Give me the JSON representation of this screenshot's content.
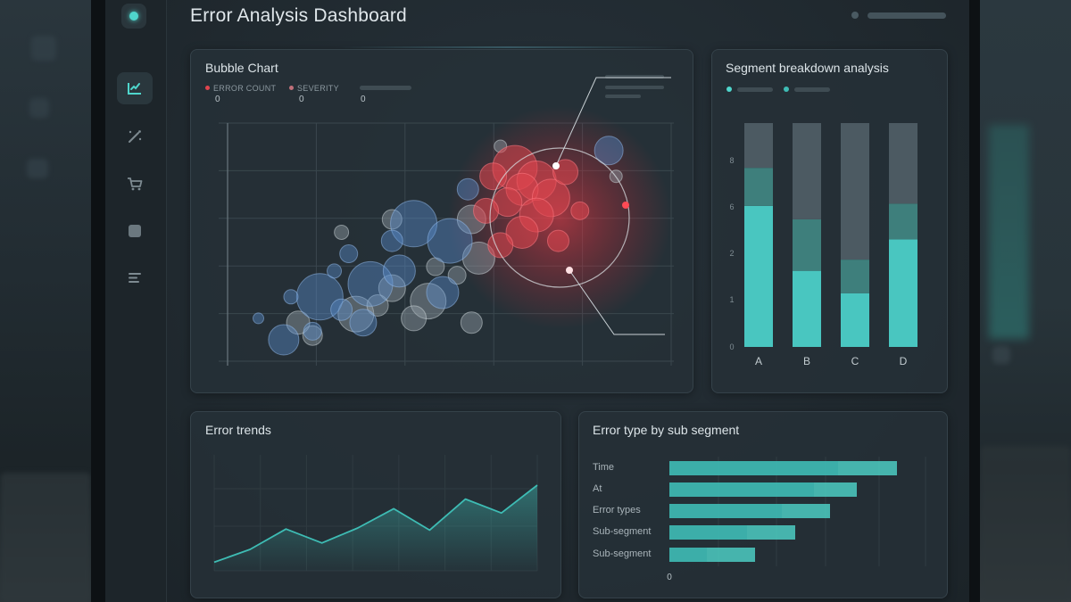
{
  "header": {
    "title": "Error Analysis Dashboard"
  },
  "sidebar": {
    "items": [
      {
        "icon": "chart-check-icon",
        "active": true
      },
      {
        "icon": "magic-wand-icon",
        "active": false
      },
      {
        "icon": "cart-icon",
        "active": false
      },
      {
        "icon": "square-icon",
        "active": false
      },
      {
        "icon": "list-icon",
        "active": false
      }
    ]
  },
  "bubble_panel": {
    "title": "Bubble Chart",
    "legend": [
      {
        "label": "ERROR COUNT",
        "value": "0",
        "color": "#e0454e"
      },
      {
        "label": "SEVERITY",
        "value": "0",
        "color": "#c0707a"
      },
      {
        "label": "",
        "value": "0",
        "color": ""
      }
    ]
  },
  "segment_panel": {
    "title": "Segment breakdown analysis",
    "legend_colors": [
      "#4fd6cc",
      "#3fbcb5"
    ]
  },
  "trends_panel": {
    "title": "Error trends"
  },
  "subsegment_panel": {
    "title": "Error type by sub segment"
  },
  "chart_data": [
    {
      "type": "scatter",
      "title": "Bubble Chart",
      "series": [
        {
          "name": "ERROR COUNT",
          "color": "#e0454e",
          "points": [
            [
              7.4,
              9.0,
              25
            ],
            [
              8.0,
              8.4,
              22
            ],
            [
              7.6,
              8.0,
              18
            ],
            [
              8.4,
              7.6,
              21
            ],
            [
              7.2,
              7.4,
              16
            ],
            [
              8.0,
              6.8,
              19
            ],
            [
              7.6,
              6.0,
              18
            ],
            [
              8.8,
              8.8,
              14
            ],
            [
              6.8,
              8.6,
              15
            ],
            [
              9.2,
              7.0,
              10
            ],
            [
              6.6,
              7.0,
              14
            ],
            [
              8.6,
              5.6,
              12
            ],
            [
              7.0,
              5.4,
              14
            ]
          ]
        },
        {
          "name": "SEVERITY",
          "color": "#5b8fd0",
          "points": [
            [
              1.0,
              1.0,
              17
            ],
            [
              2.0,
              3.0,
              26
            ],
            [
              3.4,
              3.6,
              25
            ],
            [
              4.6,
              6.4,
              26
            ],
            [
              5.6,
              5.6,
              25
            ],
            [
              4.2,
              4.2,
              18
            ],
            [
              5.4,
              3.2,
              18
            ],
            [
              3.2,
              1.8,
              15
            ],
            [
              4.0,
              5.6,
              12
            ],
            [
              2.6,
              2.4,
              12
            ],
            [
              6.1,
              8.0,
              12
            ],
            [
              10.0,
              9.8,
              16
            ],
            [
              1.2,
              3.0,
              8
            ],
            [
              0.3,
              2.0,
              6
            ],
            [
              1.8,
              1.4,
              10
            ],
            [
              2.8,
              5.0,
              10
            ],
            [
              2.4,
              4.2,
              8
            ]
          ]
        },
        {
          "name": "",
          "color": "#9aa7ae",
          "points": [
            [
              6.2,
              6.6,
              16
            ],
            [
              6.4,
              4.8,
              18
            ],
            [
              5.0,
              2.8,
              20
            ],
            [
              4.0,
              3.4,
              15
            ],
            [
              3.0,
              2.2,
              20
            ],
            [
              5.8,
              4.0,
              10
            ],
            [
              3.6,
              2.6,
              12
            ],
            [
              1.4,
              1.8,
              13
            ],
            [
              1.8,
              1.2,
              11
            ],
            [
              4.6,
              2.0,
              14
            ],
            [
              5.2,
              4.4,
              10
            ],
            [
              6.2,
              1.8,
              12
            ],
            [
              4.0,
              6.6,
              11
            ],
            [
              7.0,
              10.0,
              7
            ],
            [
              10.2,
              8.6,
              7
            ],
            [
              2.6,
              6.0,
              8
            ]
          ]
        }
      ],
      "xlim": [
        -0.8,
        11.8
      ],
      "ylim": [
        -0.2,
        11.2
      ],
      "grid": true,
      "annotations": 2
    },
    {
      "type": "bar",
      "title": "Segment breakdown analysis",
      "categories": [
        "A",
        "B",
        "C",
        "D"
      ],
      "yticks": [
        "0",
        "1",
        "2",
        "6",
        "8"
      ],
      "ylim": [
        0,
        10
      ],
      "stacked": true,
      "series": [
        {
          "values": [
            6.3,
            3.4,
            2.4,
            4.8
          ],
          "color": "#49c6c0"
        },
        {
          "values": [
            1.7,
            2.3,
            1.5,
            1.6
          ],
          "color": "#3e7f7c"
        },
        {
          "values": [
            2.0,
            4.3,
            6.1,
            3.6
          ],
          "color": "#4c5a62"
        }
      ]
    },
    {
      "type": "area",
      "title": "Error trends",
      "x": [
        0,
        1,
        2,
        3,
        4,
        5,
        6,
        7,
        8,
        9
      ],
      "series": [
        {
          "values": [
            0.8,
            2.0,
            3.9,
            2.6,
            4.0,
            5.8,
            3.8,
            6.7,
            5.4,
            8.0
          ]
        }
      ],
      "ylim": [
        0,
        10
      ],
      "color": "#3ebcb4"
    },
    {
      "type": "bar",
      "orientation": "horizontal",
      "title": "Error type by sub segment",
      "categories": [
        "Time",
        "At",
        "Error types",
        "Sub-segment",
        "Sub-segment"
      ],
      "xticks": [
        "0"
      ],
      "xlim": [
        0,
        10
      ],
      "series": [
        {
          "values": [
            6.3,
            5.4,
            4.2,
            2.9,
            1.4
          ],
          "color": "#3fbdb6"
        },
        {
          "values": [
            2.2,
            1.6,
            1.8,
            1.8,
            1.8
          ],
          "color": "#4fd6cc"
        }
      ]
    }
  ]
}
